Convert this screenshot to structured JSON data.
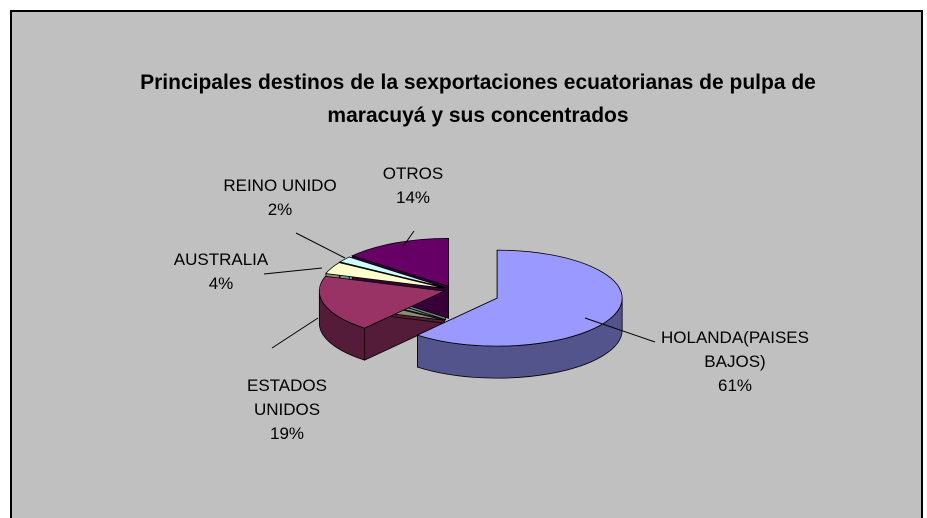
{
  "chart_data": {
    "type": "pie3d",
    "title": "Principales destinos de la sexportaciones ecuatorianas de pulpa de maracuyá y sus concentrados",
    "categories": [
      "HOLANDA(PAISES BAJOS)",
      "ESTADOS UNIDOS",
      "AUSTRALIA",
      "REINO UNIDO",
      "OTROS"
    ],
    "values": [
      61,
      19,
      4,
      2,
      14
    ],
    "value_labels": [
      "61%",
      "19%",
      "4%",
      "2%",
      "14%"
    ],
    "colors": [
      "#9999ff",
      "#993366",
      "#ffffcc",
      "#ccffff",
      "#660066"
    ]
  }
}
